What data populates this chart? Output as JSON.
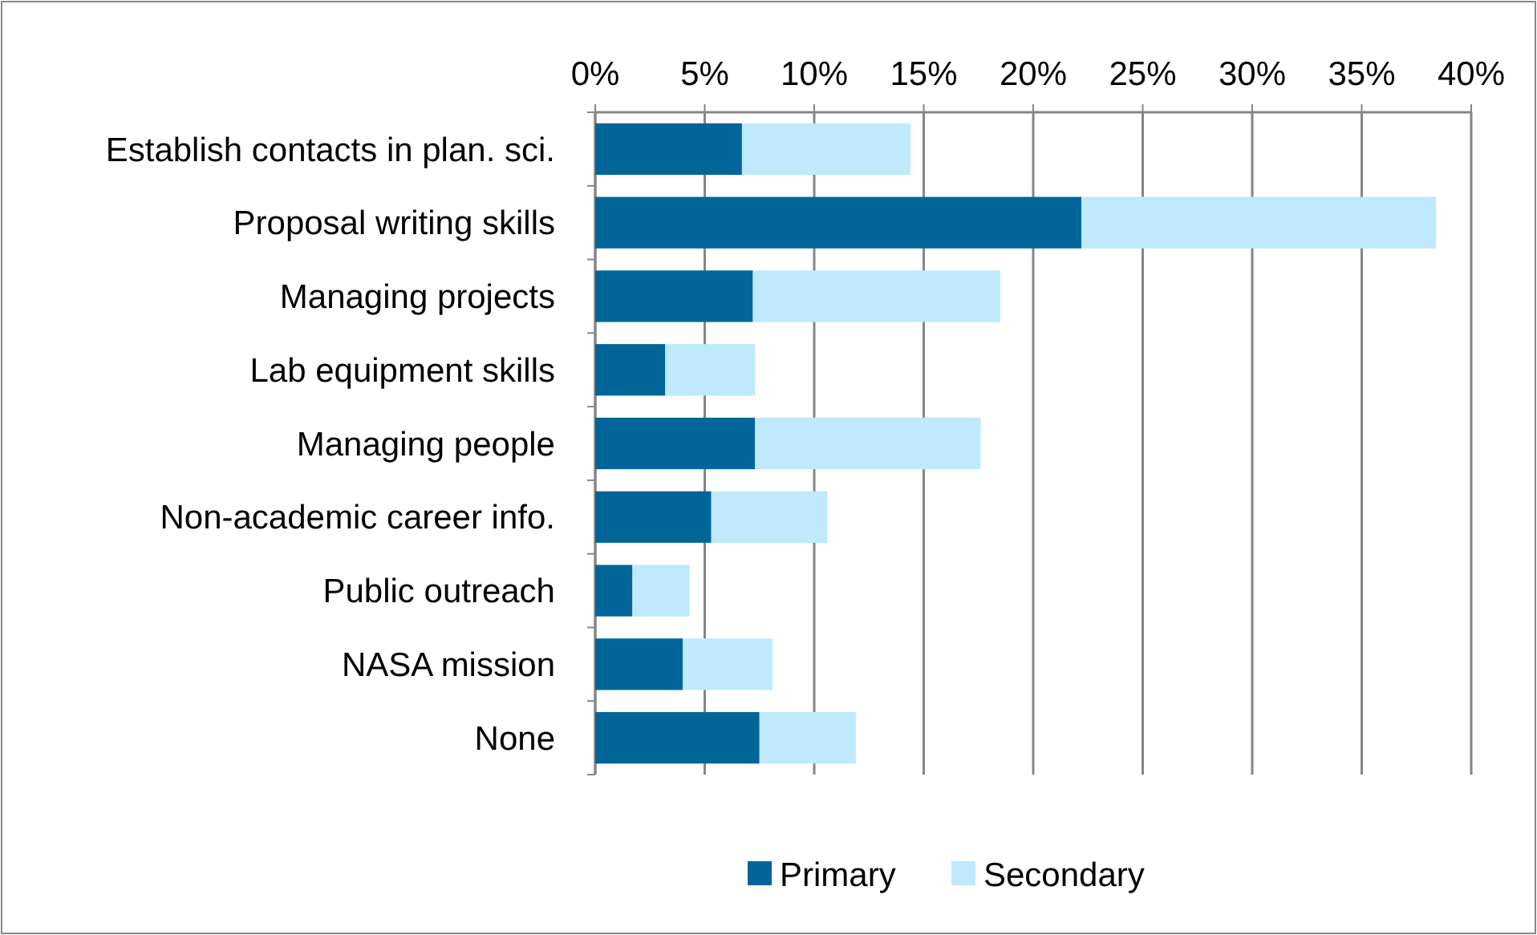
{
  "chart_data": {
    "type": "bar",
    "orientation": "horizontal",
    "stacked": true,
    "categories": [
      "Establish contacts in plan. sci.",
      "Proposal writing skills",
      "Managing projects",
      "Lab equipment skills",
      "Managing people",
      "Non-academic career info.",
      "Public outreach",
      "NASA mission",
      "None"
    ],
    "series": [
      {
        "name": "Primary",
        "color": "#006699",
        "values": [
          6.7,
          22.2,
          7.2,
          3.2,
          7.3,
          5.3,
          1.7,
          4.0,
          7.5
        ]
      },
      {
        "name": "Secondary",
        "color": "#bfe9fc",
        "values": [
          7.7,
          16.2,
          11.3,
          4.1,
          10.3,
          5.3,
          2.6,
          4.1,
          4.4
        ]
      }
    ],
    "xlim": [
      0,
      40
    ],
    "xticks": [
      {
        "value": 0,
        "label": "0%"
      },
      {
        "value": 5,
        "label": "5%"
      },
      {
        "value": 10,
        "label": "10%"
      },
      {
        "value": 15,
        "label": "15%"
      },
      {
        "value": 20,
        "label": "20%"
      },
      {
        "value": 25,
        "label": "25%"
      },
      {
        "value": 30,
        "label": "30%"
      },
      {
        "value": 35,
        "label": "35%"
      },
      {
        "value": 40,
        "label": "40%"
      }
    ],
    "grid": "x",
    "legend": "bottom"
  }
}
